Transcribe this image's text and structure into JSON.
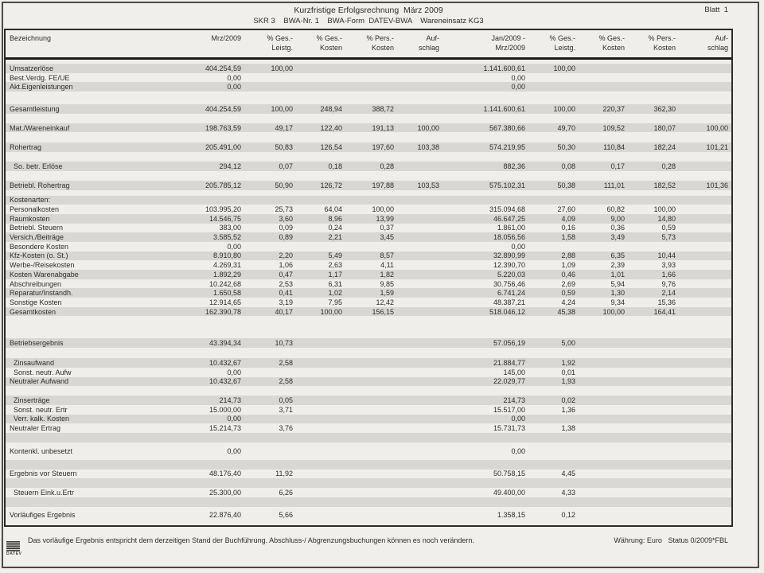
{
  "palette": {
    "row_shade": "#d8d7d4",
    "page_bg": "#f0efec",
    "text": "#2d2d2d"
  },
  "header": {
    "title": "Kurzfristige Erfolgsrechnung  März 2009",
    "sheet": "Blatt  1",
    "subtitle": "SKR 3    BWA-Nr. 1    BWA-Form  DATEV-BWA    Wareneinsatz KG3"
  },
  "table": {
    "label_header": "Bezeichnung",
    "columns": [
      {
        "line1": "Mrz/2009",
        "line2": ""
      },
      {
        "line1": "% Ges.-",
        "line2": "Leistg."
      },
      {
        "line1": "% Ges.-",
        "line2": "Kosten"
      },
      {
        "line1": "% Pers.-",
        "line2": "Kosten"
      },
      {
        "line1": "Auf-",
        "line2": "schlag"
      },
      {
        "line1": "Jan/2009 -",
        "line2": "Mrz/2009"
      },
      {
        "line1": "% Ges.-",
        "line2": "Leistg."
      },
      {
        "line1": "% Ges.-",
        "line2": "Kosten"
      },
      {
        "line1": "% Pers.-",
        "line2": "Kosten"
      },
      {
        "line1": "Auf-",
        "line2": "schlag"
      }
    ],
    "rows": [
      {
        "type": "data",
        "shade": true,
        "label": "Umsatzerlöse",
        "values": [
          "404.254,59",
          "100,00",
          "",
          "",
          "",
          "1.141.600,61",
          "100,00",
          "",
          "",
          ""
        ]
      },
      {
        "type": "data",
        "shade": false,
        "label": "Best.Verdg. FE/UE",
        "values": [
          "0,00",
          "",
          "",
          "",
          "",
          "0,00",
          "",
          "",
          "",
          ""
        ]
      },
      {
        "type": "data",
        "shade": true,
        "label": "Akt.Eigenleistungen",
        "values": [
          "0,00",
          "",
          "",
          "",
          "",
          "0,00",
          "",
          "",
          "",
          ""
        ]
      },
      {
        "type": "spacer",
        "h": 16,
        "shade": false
      },
      {
        "type": "data",
        "shade": true,
        "label": "Gesamtleistung",
        "values": [
          "404.254,59",
          "100,00",
          "248,94",
          "388,72",
          "",
          "1.141.600,61",
          "100,00",
          "220,37",
          "362,30",
          ""
        ]
      },
      {
        "type": "spacer",
        "h": 12,
        "shade": false
      },
      {
        "type": "data",
        "shade": true,
        "label": "Mat./Wareneinkauf",
        "values": [
          "198.763,59",
          "49,17",
          "122,40",
          "191,13",
          "100,00",
          "567.380,66",
          "49,70",
          "109,52",
          "180,07",
          "100,00"
        ]
      },
      {
        "type": "spacer",
        "h": 13,
        "shade": false
      },
      {
        "type": "data",
        "shade": true,
        "label": "Rohertrag",
        "values": [
          "205.491,00",
          "50,83",
          "126,54",
          "197,60",
          "103,38",
          "574.219,95",
          "50,30",
          "110,84",
          "182,24",
          "101,21"
        ]
      },
      {
        "type": "spacer",
        "h": 12,
        "shade": false
      },
      {
        "type": "data",
        "shade": true,
        "indent": true,
        "label": "So. betr. Erlöse",
        "values": [
          "294,12",
          "0,07",
          "0,18",
          "0,28",
          "",
          "882,36",
          "0,08",
          "0,17",
          "0,28",
          ""
        ]
      },
      {
        "type": "spacer",
        "h": 12,
        "shade": false
      },
      {
        "type": "data",
        "shade": true,
        "label": "Betriebl. Rohertrag",
        "values": [
          "205.785,12",
          "50,90",
          "126,72",
          "197,88",
          "103,53",
          "575.102,31",
          "50,38",
          "111,01",
          "182,52",
          "101,36"
        ]
      },
      {
        "type": "spacer",
        "h": 7,
        "shade": false
      },
      {
        "type": "data",
        "shade": true,
        "label": "Kostenarten:",
        "values": [
          "",
          "",
          "",
          "",
          "",
          "",
          "",
          "",
          "",
          ""
        ]
      },
      {
        "type": "data",
        "shade": false,
        "label": "Personalkosten",
        "values": [
          "103.995,20",
          "25,73",
          "64,04",
          "100,00",
          "",
          "315.094,68",
          "27,60",
          "60,82",
          "100,00",
          ""
        ]
      },
      {
        "type": "data",
        "shade": true,
        "label": "Raumkosten",
        "values": [
          "14.546,75",
          "3,60",
          "8,96",
          "13,99",
          "",
          "46.647,25",
          "4,09",
          "9,00",
          "14,80",
          ""
        ]
      },
      {
        "type": "data",
        "shade": false,
        "label": "Betriebl. Steuern",
        "values": [
          "383,00",
          "0,09",
          "0,24",
          "0,37",
          "",
          "1.861,00",
          "0,16",
          "0,36",
          "0,59",
          ""
        ]
      },
      {
        "type": "data",
        "shade": true,
        "label": "Versich./Beiträge",
        "values": [
          "3.585,52",
          "0,89",
          "2,21",
          "3,45",
          "",
          "18.056,56",
          "1,58",
          "3,49",
          "5,73",
          ""
        ]
      },
      {
        "type": "data",
        "shade": false,
        "label": "Besondere Kosten",
        "values": [
          "0,00",
          "",
          "",
          "",
          "",
          "0,00",
          "",
          "",
          "",
          ""
        ]
      },
      {
        "type": "data",
        "shade": true,
        "label": "Kfz-Kosten (o. St.)",
        "values": [
          "8.910,80",
          "2,20",
          "5,49",
          "8,57",
          "",
          "32.890,99",
          "2,88",
          "6,35",
          "10,44",
          ""
        ]
      },
      {
        "type": "data",
        "shade": false,
        "label": "Werbe-/Reisekosten",
        "values": [
          "4.269,31",
          "1,06",
          "2,63",
          "4,11",
          "",
          "12.390,70",
          "1,09",
          "2,39",
          "3,93",
          ""
        ]
      },
      {
        "type": "data",
        "shade": true,
        "label": "Kosten Warenabgabe",
        "values": [
          "1.892,29",
          "0,47",
          "1,17",
          "1,82",
          "",
          "5.220,03",
          "0,46",
          "1,01",
          "1,66",
          ""
        ]
      },
      {
        "type": "data",
        "shade": false,
        "label": "Abschreibungen",
        "values": [
          "10.242,68",
          "2,53",
          "6,31",
          "9,85",
          "",
          "30.756,46",
          "2,69",
          "5,94",
          "9,76",
          ""
        ]
      },
      {
        "type": "data",
        "shade": true,
        "label": "Reparatur/Instandh.",
        "values": [
          "1.650,58",
          "0,41",
          "1,02",
          "1,59",
          "",
          "6.741,24",
          "0,59",
          "1,30",
          "2,14",
          ""
        ]
      },
      {
        "type": "data",
        "shade": false,
        "label": "Sonstige Kosten",
        "values": [
          "12.914,65",
          "3,19",
          "7,95",
          "12,42",
          "",
          "48.387,21",
          "4,24",
          "9,34",
          "15,36",
          ""
        ]
      },
      {
        "type": "data",
        "shade": true,
        "label": "Gesamtkosten",
        "values": [
          "162.390,78",
          "40,17",
          "100,00",
          "156,15",
          "",
          "518.046,12",
          "45,38",
          "100,00",
          "164,41",
          ""
        ]
      },
      {
        "type": "spacer",
        "h": 28,
        "shade": false
      },
      {
        "type": "data",
        "shade": true,
        "label": "Betriebsergebnis",
        "values": [
          "43.394,34",
          "10,73",
          "",
          "",
          "",
          "57.056,19",
          "5,00",
          "",
          "",
          ""
        ]
      },
      {
        "type": "spacer",
        "h": 13,
        "shade": false
      },
      {
        "type": "data",
        "shade": true,
        "indent": true,
        "label": "Zinsaufwand",
        "values": [
          "10.432,67",
          "2,58",
          "",
          "",
          "",
          "21.884,77",
          "1,92",
          "",
          "",
          ""
        ]
      },
      {
        "type": "data",
        "shade": false,
        "indent": true,
        "label": "Sonst. neutr. Aufw",
        "values": [
          "0,00",
          "",
          "",
          "",
          "",
          "145,00",
          "0,01",
          "",
          "",
          ""
        ]
      },
      {
        "type": "data",
        "shade": true,
        "label": "Neutraler Aufwand",
        "values": [
          "10.432,67",
          "2,58",
          "",
          "",
          "",
          "22.029,77",
          "1,93",
          "",
          "",
          ""
        ]
      },
      {
        "type": "spacer",
        "h": 12,
        "shade": false
      },
      {
        "type": "data",
        "shade": true,
        "indent": true,
        "label": "Zinserträge",
        "values": [
          "214,73",
          "0,05",
          "",
          "",
          "",
          "214,73",
          "0,02",
          "",
          "",
          ""
        ]
      },
      {
        "type": "data",
        "shade": false,
        "indent": true,
        "label": "Sonst. neutr. Ertr",
        "values": [
          "15.000,00",
          "3,71",
          "",
          "",
          "",
          "15.517,00",
          "1,36",
          "",
          "",
          ""
        ]
      },
      {
        "type": "data",
        "shade": true,
        "indent": true,
        "label": "Verr. kalk. Kosten",
        "values": [
          "0,00",
          "",
          "",
          "",
          "",
          "0,00",
          "",
          "",
          "",
          ""
        ]
      },
      {
        "type": "data",
        "shade": false,
        "label": "Neutraler Ertrag",
        "values": [
          "15.214,73",
          "3,76",
          "",
          "",
          "",
          "15.731,73",
          "1,38",
          "",
          "",
          ""
        ]
      },
      {
        "type": "spacer",
        "h": 12,
        "shade": true
      },
      {
        "type": "spacer",
        "h": 5,
        "shade": false
      },
      {
        "type": "data",
        "shade": false,
        "label": "Kontenkl. unbesetzt",
        "values": [
          "0,00",
          "",
          "",
          "",
          "",
          "0,00",
          "",
          "",
          "",
          ""
        ]
      },
      {
        "type": "spacer",
        "h": 5,
        "shade": false
      },
      {
        "type": "spacer",
        "h": 12,
        "shade": true
      },
      {
        "type": "data",
        "shade": false,
        "label": "Ergebnis vor Steuern",
        "values": [
          "48.176,40",
          "11,92",
          "",
          "",
          "",
          "50.758,15",
          "4,45",
          "",
          "",
          ""
        ]
      },
      {
        "type": "spacer",
        "h": 12,
        "shade": true
      },
      {
        "type": "data",
        "shade": false,
        "indent": true,
        "label": "Steuern Eink.u.Ertr",
        "values": [
          "25.300,00",
          "6,26",
          "",
          "",
          "",
          "49.400,00",
          "4,33",
          "",
          "",
          ""
        ]
      },
      {
        "type": "spacer",
        "h": 12,
        "shade": true
      },
      {
        "type": "spacer",
        "h": 4,
        "shade": false
      },
      {
        "type": "data",
        "shade": false,
        "label": "Vorläufiges Ergebnis",
        "values": [
          "22.876,40",
          "5,66",
          "",
          "",
          "",
          "1.358,15",
          "0,12",
          "",
          "",
          ""
        ]
      }
    ]
  },
  "footer": {
    "note": "Das vorläufige Ergebnis entspricht dem derzeitigen Stand der Buchführung. Abschluss-/ Abgrenzungsbuchungen können es noch verändern.",
    "status": "Währung: Euro   Status 0/2009*FBL",
    "logo": "DATEV"
  }
}
